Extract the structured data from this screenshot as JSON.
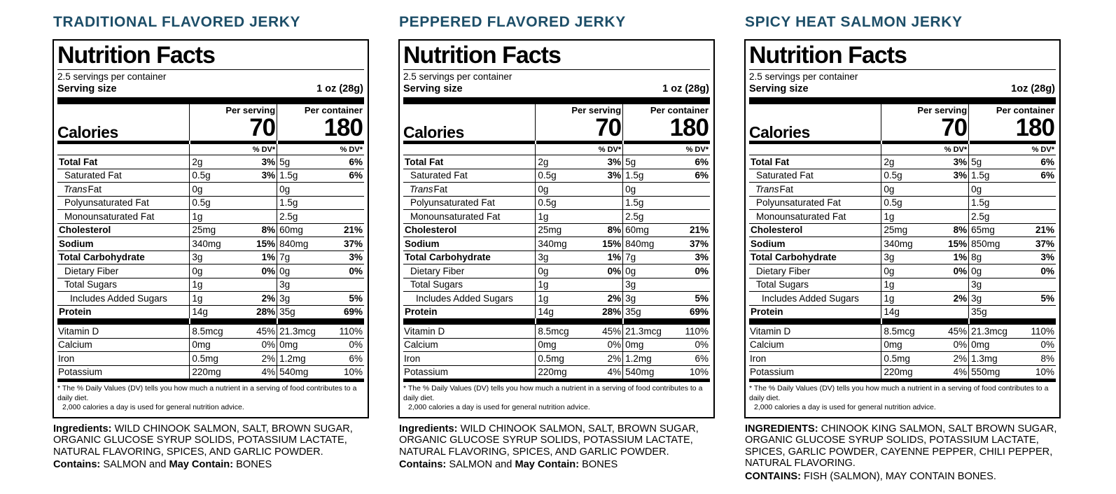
{
  "accent_color": "#1d4e68",
  "shared": {
    "nf_title": "Nutrition Facts",
    "servings_per_container": "2.5 servings per container",
    "serving_size_label": "Serving size",
    "per_serving_label": "Per serving",
    "per_container_label": "Per container",
    "calories_label": "Calories",
    "dv_header": "% DV*",
    "footnote_line1": "* The % Daily Values (DV) tells you how much a nutrient in a serving of food contributes to a daily diet.",
    "footnote_line2": "2,000 calories a day is used for general nutrition advice."
  },
  "products": [
    {
      "title": "TRADITIONAL FLAVORED JERKY",
      "serving_size_value": "1 oz (28g)",
      "calories_serving": "70",
      "calories_container": "180",
      "rows": [
        {
          "name": "Total Fat",
          "name_italic": "",
          "style": "bold",
          "indent": 0,
          "s": "2g",
          "sp": "3%",
          "c": "5g",
          "cp": "6%"
        },
        {
          "name": "Saturated Fat",
          "name_italic": "",
          "style": "",
          "indent": 1,
          "s": "0.5g",
          "sp": "3%",
          "c": "1.5g",
          "cp": "6%"
        },
        {
          "name": "Fat",
          "name_italic": "Trans",
          "style": "",
          "indent": 1,
          "s": "0g",
          "sp": "",
          "c": "0g",
          "cp": ""
        },
        {
          "name": "Polyunsaturated Fat",
          "name_italic": "",
          "style": "",
          "indent": 1,
          "s": "0.5g",
          "sp": "",
          "c": "1.5g",
          "cp": ""
        },
        {
          "name": "Monounsaturated Fat",
          "name_italic": "",
          "style": "",
          "indent": 1,
          "s": "1g",
          "sp": "",
          "c": "2.5g",
          "cp": ""
        },
        {
          "name": "Cholesterol",
          "name_italic": "",
          "style": "bold",
          "indent": 0,
          "s": "25mg",
          "sp": "8%",
          "c": "60mg",
          "cp": "21%"
        },
        {
          "name": "Sodium",
          "name_italic": "",
          "style": "bold",
          "indent": 0,
          "s": "340mg",
          "sp": "15%",
          "c": "840mg",
          "cp": "37%"
        },
        {
          "name": "Total Carbohydrate",
          "name_italic": "",
          "style": "bold",
          "indent": 0,
          "s": "3g",
          "sp": "1%",
          "c": "7g",
          "cp": "3%"
        },
        {
          "name": "Dietary Fiber",
          "name_italic": "",
          "style": "",
          "indent": 1,
          "s": "0g",
          "sp": "0%",
          "c": "0g",
          "cp": "0%"
        },
        {
          "name": "Total Sugars",
          "name_italic": "",
          "style": "",
          "indent": 1,
          "s": "1g",
          "sp": "",
          "c": "3g",
          "cp": ""
        },
        {
          "name": "Includes Added Sugars",
          "name_italic": "",
          "style": "",
          "indent": 2,
          "s": "1g",
          "sp": "2%",
          "c": "3g",
          "cp": "5%"
        },
        {
          "name": "Protein",
          "name_italic": "",
          "style": "bold",
          "indent": 0,
          "s": "14g",
          "sp": "28%",
          "c": "35g",
          "cp": "69%"
        }
      ],
      "vitamins": [
        {
          "name": "Vitamin D",
          "s": "8.5mcg",
          "sp": "45%",
          "c": "21.3mcg",
          "cp": "110%"
        },
        {
          "name": "Calcium",
          "s": "0mg",
          "sp": "0%",
          "c": "0mg",
          "cp": "0%"
        },
        {
          "name": "Iron",
          "s": "0.5mg",
          "sp": "2%",
          "c": "1.2mg",
          "cp": "6%"
        },
        {
          "name": "Potassium",
          "s": "220mg",
          "sp": "4%",
          "c": "540mg",
          "cp": "10%"
        }
      ],
      "ingredients_segments": [
        {
          "text": "Ingredients:",
          "bold": true
        },
        {
          "text": " WILD CHINOOK SALMON, SALT, BROWN SUGAR, ORGANIC GLUCOSE SYRUP SOLIDS, POTASSIUM LACTATE, NATURAL FLAVORING, SPICES, AND GARLIC POWDER.",
          "bold": false
        }
      ],
      "contains_segments": [
        {
          "text": "Contains:",
          "bold": true
        },
        {
          "text": " SALMON and ",
          "bold": false
        },
        {
          "text": "May Contain:",
          "bold": true
        },
        {
          "text": " BONES",
          "bold": false
        }
      ]
    },
    {
      "title": "PEPPERED FLAVORED JERKY",
      "serving_size_value": "1 oz (28g)",
      "calories_serving": "70",
      "calories_container": "180",
      "rows": [
        {
          "name": "Total Fat",
          "name_italic": "",
          "style": "bold",
          "indent": 0,
          "s": "2g",
          "sp": "3%",
          "c": "5g",
          "cp": "6%"
        },
        {
          "name": "Saturated Fat",
          "name_italic": "",
          "style": "",
          "indent": 1,
          "s": "0.5g",
          "sp": "3%",
          "c": "1.5g",
          "cp": "6%"
        },
        {
          "name": "Fat",
          "name_italic": "Trans",
          "style": "",
          "indent": 1,
          "s": "0g",
          "sp": "",
          "c": "0g",
          "cp": ""
        },
        {
          "name": "Polyunsaturated Fat",
          "name_italic": "",
          "style": "",
          "indent": 1,
          "s": "0.5g",
          "sp": "",
          "c": "1.5g",
          "cp": ""
        },
        {
          "name": "Monounsaturated Fat",
          "name_italic": "",
          "style": "",
          "indent": 1,
          "s": "1g",
          "sp": "",
          "c": "2.5g",
          "cp": ""
        },
        {
          "name": "Cholesterol",
          "name_italic": "",
          "style": "bold",
          "indent": 0,
          "s": "25mg",
          "sp": "8%",
          "c": "60mg",
          "cp": "21%"
        },
        {
          "name": "Sodium",
          "name_italic": "",
          "style": "bold",
          "indent": 0,
          "s": "340mg",
          "sp": "15%",
          "c": "840mg",
          "cp": "37%"
        },
        {
          "name": "Total Carbohydrate",
          "name_italic": "",
          "style": "bold",
          "indent": 0,
          "s": "3g",
          "sp": "1%",
          "c": "7g",
          "cp": "3%"
        },
        {
          "name": "Dietary Fiber",
          "name_italic": "",
          "style": "",
          "indent": 1,
          "s": "0g",
          "sp": "0%",
          "c": "0g",
          "cp": "0%"
        },
        {
          "name": "Total Sugars",
          "name_italic": "",
          "style": "",
          "indent": 1,
          "s": "1g",
          "sp": "",
          "c": "3g",
          "cp": ""
        },
        {
          "name": "Includes Added Sugars",
          "name_italic": "",
          "style": "",
          "indent": 2,
          "s": "1g",
          "sp": "2%",
          "c": "3g",
          "cp": "5%"
        },
        {
          "name": "Protein",
          "name_italic": "",
          "style": "bold",
          "indent": 0,
          "s": "14g",
          "sp": "28%",
          "c": "35g",
          "cp": "69%"
        }
      ],
      "vitamins": [
        {
          "name": "Vitamin D",
          "s": "8.5mcg",
          "sp": "45%",
          "c": "21.3mcg",
          "cp": "110%"
        },
        {
          "name": "Calcium",
          "s": "0mg",
          "sp": "0%",
          "c": "0mg",
          "cp": "0%"
        },
        {
          "name": "Iron",
          "s": "0.5mg",
          "sp": "2%",
          "c": "1.2mg",
          "cp": "6%"
        },
        {
          "name": "Potassium",
          "s": "220mg",
          "sp": "4%",
          "c": "540mg",
          "cp": "10%"
        }
      ],
      "ingredients_segments": [
        {
          "text": "Ingredients:",
          "bold": true
        },
        {
          "text": " WILD CHINOOK SALMON, SALT, BROWN SUGAR, ORGANIC GLUCOSE SYRUP SOLIDS, POTASSIUM LACTATE, NATURAL FLAVORING, SPICES, AND GARLIC POWDER.",
          "bold": false
        }
      ],
      "contains_segments": [
        {
          "text": "Contains:",
          "bold": true
        },
        {
          "text": " SALMON and ",
          "bold": false
        },
        {
          "text": "May Contain:",
          "bold": true
        },
        {
          "text": " BONES",
          "bold": false
        }
      ]
    },
    {
      "title": "SPICY HEAT SALMON JERKY",
      "serving_size_value": "1oz (28g)",
      "calories_serving": "70",
      "calories_container": "180",
      "rows": [
        {
          "name": "Total Fat",
          "name_italic": "",
          "style": "bold",
          "indent": 0,
          "s": "2g",
          "sp": "3%",
          "c": "5g",
          "cp": "6%"
        },
        {
          "name": "Saturated Fat",
          "name_italic": "",
          "style": "",
          "indent": 1,
          "s": "0.5g",
          "sp": "3%",
          "c": "1.5g",
          "cp": "6%"
        },
        {
          "name": "Fat",
          "name_italic": "Trans",
          "style": "",
          "indent": 1,
          "s": "0g",
          "sp": "",
          "c": "0g",
          "cp": ""
        },
        {
          "name": "Polyunsaturated Fat",
          "name_italic": "",
          "style": "",
          "indent": 1,
          "s": "0.5g",
          "sp": "",
          "c": "1.5g",
          "cp": ""
        },
        {
          "name": "Monounsaturated Fat",
          "name_italic": "",
          "style": "",
          "indent": 1,
          "s": "1g",
          "sp": "",
          "c": "2.5g",
          "cp": ""
        },
        {
          "name": "Cholesterol",
          "name_italic": "",
          "style": "bold",
          "indent": 0,
          "s": "25mg",
          "sp": "8%",
          "c": "65mg",
          "cp": "21%"
        },
        {
          "name": "Sodium",
          "name_italic": "",
          "style": "bold",
          "indent": 0,
          "s": "340mg",
          "sp": "15%",
          "c": "850mg",
          "cp": "37%"
        },
        {
          "name": "Total Carbohydrate",
          "name_italic": "",
          "style": "bold",
          "indent": 0,
          "s": "3g",
          "sp": "1%",
          "c": "8g",
          "cp": "3%"
        },
        {
          "name": "Dietary Fiber",
          "name_italic": "",
          "style": "",
          "indent": 1,
          "s": "0g",
          "sp": "0%",
          "c": "0g",
          "cp": "0%"
        },
        {
          "name": "Total Sugars",
          "name_italic": "",
          "style": "",
          "indent": 1,
          "s": "1g",
          "sp": "",
          "c": "3g",
          "cp": ""
        },
        {
          "name": "Includes Added Sugars",
          "name_italic": "",
          "style": "",
          "indent": 2,
          "s": "1g",
          "sp": "2%",
          "c": "3g",
          "cp": "5%"
        },
        {
          "name": "Protein",
          "name_italic": "",
          "style": "bold",
          "indent": 0,
          "s": "14g",
          "sp": "",
          "c": "35g",
          "cp": ""
        }
      ],
      "vitamins": [
        {
          "name": "Vitamin D",
          "s": "8.5mcg",
          "sp": "45%",
          "c": "21.3mcg",
          "cp": "110%"
        },
        {
          "name": "Calcium",
          "s": "0mg",
          "sp": "0%",
          "c": "0mg",
          "cp": "0%"
        },
        {
          "name": "Iron",
          "s": "0.5mg",
          "sp": "2%",
          "c": "1.3mg",
          "cp": "8%"
        },
        {
          "name": "Potassium",
          "s": "220mg",
          "sp": "4%",
          "c": "550mg",
          "cp": "10%"
        }
      ],
      "ingredients_segments": [
        {
          "text": "INGREDIENTS:",
          "bold": true
        },
        {
          "text": " CHINOOK KING SALMON, SALT BROWN SUGAR, ORGANIC GLUCOSE SYRUP SOLIDS, POTASSIUM LACTATE, SPICES, GARLIC POWDER, CAYENNE PEPPER, CHILI PEPPER, NATURAL FLAVORING.",
          "bold": false
        }
      ],
      "contains_segments": [
        {
          "text": "CONTAINS:",
          "bold": true
        },
        {
          "text": " FISH (SALMON), MAY CONTAIN BONES.",
          "bold": false
        }
      ]
    }
  ]
}
